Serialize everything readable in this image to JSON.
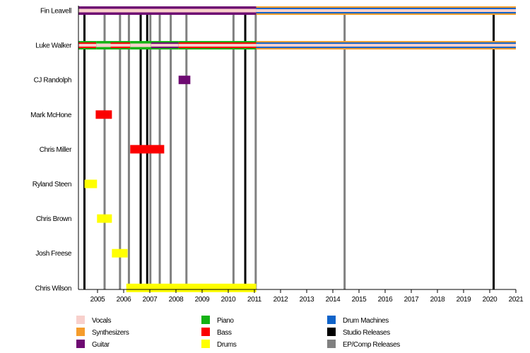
{
  "chart_data": {
    "type": "timeline",
    "title": "",
    "xlabel": "",
    "ylabel": "",
    "xlim": [
      2004.27,
      2021.0
    ],
    "x_ticks": [
      2005,
      2006,
      2007,
      2008,
      2009,
      2010,
      2011,
      2012,
      2013,
      2014,
      2015,
      2016,
      2017,
      2018,
      2019,
      2020,
      2021
    ],
    "grid": false,
    "legend_position": "bottom",
    "colors": {
      "Vocals": "#f8d0cc",
      "Synthesizers": "#f59c2c",
      "Guitar": "#6e0a72",
      "Piano": "#13b213",
      "Bass": "#fb0000",
      "Drums": "#ffff00",
      "Drum Machines": "#0f63c9",
      "Studio Releases": "#000000",
      "EP/Comp Releases": "#808080"
    },
    "legend": [
      [
        "Vocals",
        "Piano",
        "Drum Machines"
      ],
      [
        "Synthesizers",
        "Bass",
        "Studio Releases"
      ],
      [
        "Guitar",
        "Drums",
        "EP/Comp Releases"
      ]
    ],
    "members": [
      {
        "name": "Fin Leavell",
        "periods": [
          {
            "start": 2004.27,
            "end": 2011.07,
            "layers": [
              "Guitar",
              "Vocals"
            ]
          },
          {
            "start": 2011.07,
            "end": 2021.0,
            "layers": [
              "Synthesizers",
              "Drum Machines",
              "Vocals"
            ]
          }
        ]
      },
      {
        "name": "Luke Walker",
        "periods": [
          {
            "start": 2004.27,
            "end": 2004.95,
            "layers": [
              "Piano",
              "Bass",
              "Vocals"
            ]
          },
          {
            "start": 2004.95,
            "end": 2005.5,
            "layers": [
              "Piano",
              "Vocals"
            ]
          },
          {
            "start": 2005.5,
            "end": 2006.25,
            "layers": [
              "Piano",
              "Bass",
              "Vocals"
            ]
          },
          {
            "start": 2006.25,
            "end": 2007.05,
            "layers": [
              "Piano",
              "Vocals"
            ]
          },
          {
            "start": 2007.05,
            "end": 2008.1,
            "layers": [
              "Piano",
              "Guitar",
              "Vocals"
            ]
          },
          {
            "start": 2008.1,
            "end": 2011.07,
            "layers": [
              "Piano",
              "Bass",
              "Vocals"
            ]
          },
          {
            "start": 2011.07,
            "end": 2021.0,
            "layers": [
              "Synthesizers",
              "Drum Machines",
              "Vocals"
            ]
          }
        ]
      },
      {
        "name": "CJ Randolph",
        "periods": [
          {
            "start": 2008.1,
            "end": 2008.55,
            "layers": [
              "Guitar"
            ]
          }
        ]
      },
      {
        "name": "Mark McHone",
        "periods": [
          {
            "start": 2004.93,
            "end": 2005.55,
            "layers": [
              "Bass"
            ]
          }
        ]
      },
      {
        "name": "Chris Miller",
        "periods": [
          {
            "start": 2006.25,
            "end": 2007.55,
            "layers": [
              "Bass"
            ]
          }
        ]
      },
      {
        "name": "Ryland Steen",
        "periods": [
          {
            "start": 2004.5,
            "end": 2004.98,
            "layers": [
              "Drums"
            ]
          }
        ]
      },
      {
        "name": "Chris Brown",
        "periods": [
          {
            "start": 2004.98,
            "end": 2005.55,
            "layers": [
              "Drums"
            ]
          }
        ]
      },
      {
        "name": "Josh Freese",
        "periods": [
          {
            "start": 2005.55,
            "end": 2006.15,
            "layers": [
              "Drums"
            ]
          }
        ]
      },
      {
        "name": "Chris Wilson",
        "periods": [
          {
            "start": 2006.1,
            "end": 2011.07,
            "layers": [
              "Drums"
            ]
          }
        ]
      }
    ],
    "studio_releases": [
      2004.5,
      2006.65,
      2006.9,
      2010.65,
      2020.15
    ],
    "ep_comp_releases": [
      2005.27,
      2005.86,
      2006.2,
      2007.02,
      2007.38,
      2007.8,
      2008.4,
      2010.2,
      2011.05,
      2014.45
    ]
  }
}
